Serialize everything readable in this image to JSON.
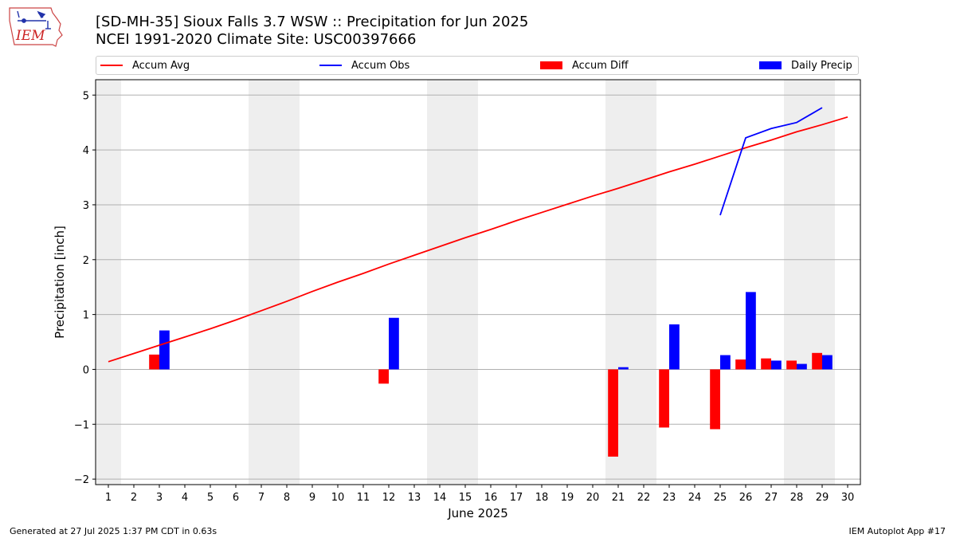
{
  "logo": {
    "text": "IEM",
    "icon": "iowa-state-outline-with-weather-station"
  },
  "title_line1": "[SD-MH-35] Sioux Falls 3.7 WSW :: Precipitation for Jun 2025",
  "title_line2": "NCEI 1991-2020 Climate Site: USC00397666",
  "footer_left": "Generated at 27 Jul 2025 1:37 PM CDT in 0.63s",
  "footer_right": "IEM Autoplot App #17",
  "chart_data": {
    "type": "bar",
    "xlabel": "June 2025",
    "ylabel": "Precipitation [inch]",
    "xlim": [
      0.5,
      30.5
    ],
    "ylim": [
      -2.1,
      5.28
    ],
    "yticks": [
      -2,
      -1,
      0,
      1,
      2,
      3,
      4,
      5
    ],
    "ytick_labels": [
      "−2",
      "−1",
      "0",
      "1",
      "2",
      "3",
      "4",
      "5"
    ],
    "days": [
      1,
      2,
      3,
      4,
      5,
      6,
      7,
      8,
      9,
      10,
      11,
      12,
      13,
      14,
      15,
      16,
      17,
      18,
      19,
      20,
      21,
      22,
      23,
      24,
      25,
      26,
      27,
      28,
      29,
      30
    ],
    "grid": "horizontal",
    "legend_position": "top",
    "weekend_shading": [
      [
        0.5,
        1.5
      ],
      [
        6.5,
        8.5
      ],
      [
        13.5,
        15.5
      ],
      [
        20.5,
        22.5
      ],
      [
        27.5,
        29.5
      ]
    ],
    "series": [
      {
        "name": "Accum Avg",
        "kind": "line",
        "color": "#ff0000",
        "x": [
          1,
          2,
          3,
          4,
          5,
          6,
          7,
          8,
          9,
          10,
          11,
          12,
          13,
          14,
          15,
          16,
          17,
          18,
          19,
          20,
          21,
          22,
          23,
          24,
          25,
          26,
          27,
          28,
          29,
          30
        ],
        "values": [
          0.14,
          0.29,
          0.44,
          0.59,
          0.74,
          0.9,
          1.07,
          1.24,
          1.42,
          1.59,
          1.75,
          1.92,
          2.08,
          2.24,
          2.4,
          2.55,
          2.71,
          2.86,
          3.01,
          3.16,
          3.3,
          3.45,
          3.6,
          3.74,
          3.89,
          4.04,
          4.18,
          4.33,
          4.46,
          4.6
        ]
      },
      {
        "name": "Accum Obs",
        "kind": "line",
        "color": "#0000ff",
        "x": [
          25,
          26,
          27,
          28,
          29
        ],
        "values": [
          2.81,
          4.22,
          4.39,
          4.5,
          4.77
        ]
      },
      {
        "name": "Accum Diff",
        "kind": "bar",
        "color": "#ff0000",
        "x": [
          3,
          12,
          21,
          23,
          25,
          26,
          27,
          28,
          29
        ],
        "values": [
          0.27,
          -0.26,
          -1.59,
          -1.06,
          -1.09,
          0.18,
          0.2,
          0.16,
          0.3
        ]
      },
      {
        "name": "Daily Precip",
        "kind": "bar",
        "color": "#0000ff",
        "x": [
          3,
          12,
          21,
          23,
          25,
          26,
          27,
          28,
          29
        ],
        "values": [
          0.71,
          0.94,
          0.04,
          0.82,
          0.26,
          1.41,
          0.16,
          0.1,
          0.26
        ]
      }
    ]
  }
}
